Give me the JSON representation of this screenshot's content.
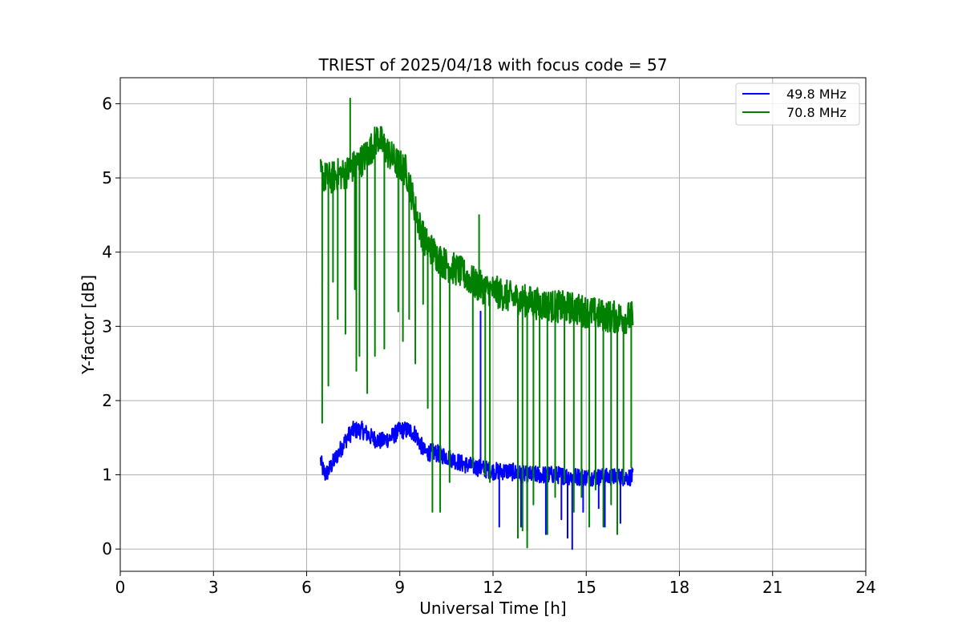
{
  "chart_data": {
    "type": "line",
    "title": "TRIEST of 2025/04/18 with focus code = 57",
    "xlabel": "Universal Time [h]",
    "ylabel": "Y-factor [dB]",
    "xlim": [
      0,
      24
    ],
    "ylim": [
      -0.3,
      6.35
    ],
    "xticks": [
      0,
      3,
      6,
      9,
      12,
      15,
      18,
      21,
      24
    ],
    "xtick_labels": [
      "0",
      "3",
      "6",
      "9",
      "12",
      "15",
      "18",
      "21",
      "24"
    ],
    "yticks": [
      0,
      1,
      2,
      3,
      4,
      5,
      6
    ],
    "ytick_labels": [
      "0",
      "1",
      "2",
      "3",
      "4",
      "5",
      "6"
    ],
    "grid": true,
    "legend_position": "top-right",
    "series": [
      {
        "name": "49.8 MHz",
        "color": "#0000ff",
        "noise": 0.12,
        "x": [
          6.45,
          6.5,
          6.6,
          6.7,
          6.9,
          7.1,
          7.3,
          7.5,
          7.8,
          8.1,
          8.4,
          8.7,
          9.0,
          9.3,
          9.5,
          9.8,
          10.1,
          10.5,
          11.0,
          11.5,
          12.0,
          12.5,
          13.0,
          13.5,
          14.0,
          14.5,
          15.0,
          15.5,
          16.0,
          16.5
        ],
        "y": [
          1.2,
          1.1,
          1.0,
          1.05,
          1.2,
          1.35,
          1.5,
          1.6,
          1.6,
          1.5,
          1.45,
          1.5,
          1.6,
          1.6,
          1.55,
          1.3,
          1.3,
          1.25,
          1.15,
          1.1,
          1.05,
          1.05,
          1.0,
          1.0,
          1.0,
          0.98,
          0.97,
          0.97,
          0.97,
          0.97
        ],
        "spikes": [
          {
            "x": 11.6,
            "y": 3.2
          },
          {
            "x": 12.2,
            "y": 0.3
          },
          {
            "x": 12.9,
            "y": 0.3
          },
          {
            "x": 13.1,
            "y": 0.25
          },
          {
            "x": 13.7,
            "y": 0.2
          },
          {
            "x": 14.2,
            "y": 0.4
          },
          {
            "x": 14.4,
            "y": 0.15
          },
          {
            "x": 14.55,
            "y": 0.0
          },
          {
            "x": 14.9,
            "y": 0.5
          },
          {
            "x": 15.4,
            "y": 0.55
          },
          {
            "x": 15.6,
            "y": 0.3
          },
          {
            "x": 16.1,
            "y": 0.35
          }
        ]
      },
      {
        "name": "70.8 MHz",
        "color": "#008000",
        "noise": 0.22,
        "x": [
          6.45,
          6.6,
          6.8,
          7.0,
          7.2,
          7.5,
          7.8,
          8.0,
          8.3,
          8.6,
          8.9,
          9.2,
          9.4,
          9.6,
          9.8,
          10.0,
          10.3,
          10.6,
          10.9,
          11.2,
          11.5,
          11.8,
          12.0,
          12.5,
          13.0,
          13.5,
          14.0,
          14.5,
          15.0,
          15.5,
          16.0,
          16.5
        ],
        "y": [
          5.05,
          5.0,
          5.0,
          5.05,
          5.05,
          5.15,
          5.25,
          5.35,
          5.55,
          5.35,
          5.2,
          5.1,
          4.75,
          4.4,
          4.15,
          4.05,
          3.9,
          3.8,
          3.75,
          3.65,
          3.55,
          3.5,
          3.48,
          3.4,
          3.35,
          3.3,
          3.27,
          3.25,
          3.2,
          3.15,
          3.12,
          3.12
        ],
        "spikes": [
          {
            "x": 6.5,
            "y": 1.7
          },
          {
            "x": 6.7,
            "y": 2.2
          },
          {
            "x": 6.85,
            "y": 3.6
          },
          {
            "x": 7.0,
            "y": 3.1
          },
          {
            "x": 7.25,
            "y": 2.9
          },
          {
            "x": 7.4,
            "y": 6.07
          },
          {
            "x": 7.55,
            "y": 3.5
          },
          {
            "x": 7.6,
            "y": 2.4
          },
          {
            "x": 7.7,
            "y": 2.6
          },
          {
            "x": 7.95,
            "y": 2.1
          },
          {
            "x": 8.2,
            "y": 2.6
          },
          {
            "x": 8.5,
            "y": 2.7
          },
          {
            "x": 8.95,
            "y": 3.2
          },
          {
            "x": 9.1,
            "y": 2.8
          },
          {
            "x": 9.3,
            "y": 3.1
          },
          {
            "x": 9.5,
            "y": 2.5
          },
          {
            "x": 9.75,
            "y": 3.3
          },
          {
            "x": 9.9,
            "y": 1.9
          },
          {
            "x": 10.05,
            "y": 0.5
          },
          {
            "x": 10.3,
            "y": 0.5
          },
          {
            "x": 10.6,
            "y": 0.9
          },
          {
            "x": 11.35,
            "y": 1.1
          },
          {
            "x": 11.55,
            "y": 4.5
          },
          {
            "x": 11.75,
            "y": 1.0
          },
          {
            "x": 11.9,
            "y": 0.9
          },
          {
            "x": 12.8,
            "y": 0.15
          },
          {
            "x": 12.95,
            "y": 0.25
          },
          {
            "x": 13.1,
            "y": 0.02
          },
          {
            "x": 13.3,
            "y": 0.6
          },
          {
            "x": 13.5,
            "y": 1.1
          },
          {
            "x": 13.75,
            "y": 0.2
          },
          {
            "x": 14.0,
            "y": 0.7
          },
          {
            "x": 14.3,
            "y": 0.9
          },
          {
            "x": 14.6,
            "y": 0.5
          },
          {
            "x": 14.85,
            "y": 0.7
          },
          {
            "x": 15.1,
            "y": 0.3
          },
          {
            "x": 15.3,
            "y": 0.8
          },
          {
            "x": 15.55,
            "y": 0.3
          },
          {
            "x": 15.8,
            "y": 0.6
          },
          {
            "x": 16.0,
            "y": 0.2
          },
          {
            "x": 16.2,
            "y": 0.9
          },
          {
            "x": 16.45,
            "y": 1.1
          }
        ]
      }
    ]
  }
}
